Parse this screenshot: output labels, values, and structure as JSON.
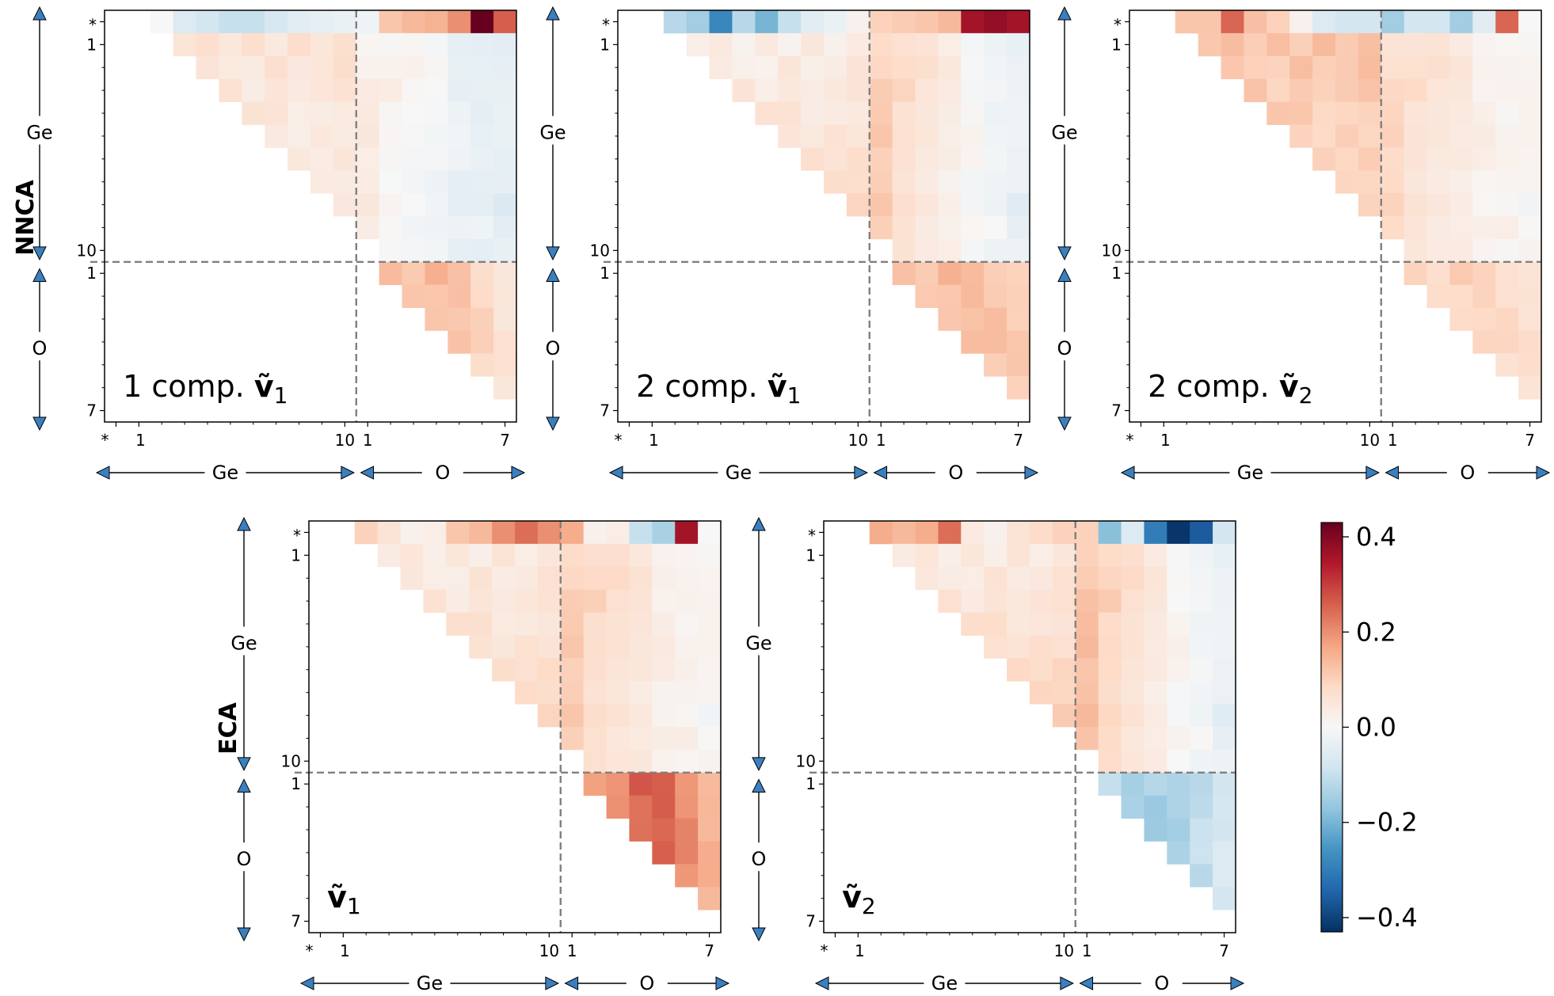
{
  "figure": {
    "row_labels": [
      "NNCA",
      "ECA"
    ],
    "colorbar": {
      "min": -0.43,
      "max": 0.43,
      "ticks": [
        "0.4",
        "0.2",
        "0.0",
        "−0.2",
        "−0.4"
      ],
      "tick_values": [
        0.4,
        0.2,
        0.0,
        -0.2,
        -0.4
      ],
      "colormap": "RdBu_r"
    },
    "axis_groups": {
      "ge": "Ge",
      "o": "O",
      "star": "*"
    },
    "colors": {
      "arrow_fill": "#3a80c0",
      "dashed": "#808080",
      "pos": "#67001f",
      "neg": "#053061"
    }
  },
  "chart_data": [
    {
      "type": "heatmap",
      "panel": "1 comp. ṽ₁",
      "label_main": "1 comp. ",
      "label_vec": "ṽ",
      "label_sub": "1",
      "rows": [
        "*",
        "Ge1",
        "Ge2",
        "Ge3",
        "Ge4",
        "Ge5",
        "Ge6",
        "Ge7",
        "Ge8",
        "Ge9",
        "Ge10",
        "O1",
        "O2",
        "O3",
        "O4",
        "O5",
        "O6",
        "O7"
      ],
      "cols": [
        "*",
        "Ge1",
        "Ge2",
        "Ge3",
        "Ge4",
        "Ge5",
        "Ge6",
        "Ge7",
        "Ge8",
        "Ge9",
        "Ge10",
        "O1",
        "O2",
        "O3",
        "O4",
        "O5",
        "O6",
        "O7"
      ],
      "y_ticks": [
        "*",
        "1",
        "10",
        "1",
        "7"
      ],
      "x_ticks": [
        "*",
        "1",
        "10",
        "1",
        "7"
      ],
      "anchors": {
        "top": [
          0.0,
          -0.06,
          -0.08,
          -0.1,
          -0.1,
          -0.07,
          -0.05,
          -0.04,
          -0.03,
          -0.02,
          0.12,
          0.14,
          0.15,
          0.2,
          0.43,
          0.26
        ],
        "geo": [
          0.06,
          0.03,
          -0.05
        ],
        "o": [
          0.12,
          0.14,
          0.05
        ]
      }
    },
    {
      "type": "heatmap",
      "panel": "2 comp. ṽ₁",
      "label_main": "2 comp. ",
      "label_vec": "ṽ",
      "label_sub": "1",
      "rows": [
        "*",
        "Ge1",
        "Ge2",
        "Ge3",
        "Ge4",
        "Ge5",
        "Ge6",
        "Ge7",
        "Ge8",
        "Ge9",
        "Ge10",
        "O1",
        "O2",
        "O3",
        "O4",
        "O5",
        "O6",
        "O7"
      ],
      "cols": [
        "*",
        "Ge1",
        "Ge2",
        "Ge3",
        "Ge4",
        "Ge5",
        "Ge6",
        "Ge7",
        "Ge8",
        "Ge9",
        "Ge10",
        "O1",
        "O2",
        "O3",
        "O4",
        "O5",
        "O6",
        "O7"
      ],
      "y_ticks": [
        "*",
        "1",
        "10",
        "1",
        "7"
      ],
      "x_ticks": [
        "*",
        "1",
        "10",
        "1",
        "7"
      ],
      "anchors": {
        "top": [
          -0.12,
          -0.15,
          -0.28,
          -0.12,
          -0.2,
          -0.1,
          -0.05,
          -0.03,
          0.02,
          0.1,
          0.11,
          0.12,
          0.14,
          0.36,
          0.38,
          0.36
        ],
        "geo": [
          0.03,
          0.1,
          -0.04
        ],
        "o": [
          0.11,
          0.14,
          0.1
        ]
      }
    },
    {
      "type": "heatmap",
      "panel": "2 comp. ṽ₂",
      "label_main": "2 comp. ",
      "label_vec": "ṽ",
      "label_sub": "2",
      "rows": [
        "*",
        "Ge1",
        "Ge2",
        "Ge3",
        "Ge4",
        "Ge5",
        "Ge6",
        "Ge7",
        "Ge8",
        "Ge9",
        "Ge10",
        "O1",
        "O2",
        "O3",
        "O4",
        "O5",
        "O6",
        "O7"
      ],
      "cols": [
        "*",
        "Ge1",
        "Ge2",
        "Ge3",
        "Ge4",
        "Ge5",
        "Ge6",
        "Ge7",
        "Ge8",
        "Ge9",
        "Ge10",
        "O1",
        "O2",
        "O3",
        "O4",
        "O5",
        "O6",
        "O7"
      ],
      "y_ticks": [
        "*",
        "1",
        "10",
        "1",
        "7"
      ],
      "x_ticks": [
        "*",
        "1",
        "10",
        "1",
        "7"
      ],
      "anchors": {
        "top": [
          0.12,
          0.12,
          0.25,
          0.13,
          0.1,
          0.02,
          -0.06,
          -0.08,
          -0.08,
          -0.15,
          -0.08,
          -0.08,
          -0.15,
          -0.05,
          0.25,
          0.0
        ],
        "geo": [
          0.12,
          0.08,
          0.0
        ],
        "o": [
          0.08,
          0.1,
          0.06
        ]
      }
    },
    {
      "type": "heatmap",
      "panel": "ECA ṽ₁",
      "label_main": "",
      "label_vec": "ṽ",
      "label_sub": "1",
      "rows": [
        "*",
        "Ge1",
        "Ge2",
        "Ge3",
        "Ge4",
        "Ge5",
        "Ge6",
        "Ge7",
        "Ge8",
        "Ge9",
        "Ge10",
        "O1",
        "O2",
        "O3",
        "O4",
        "O5",
        "O6",
        "O7"
      ],
      "cols": [
        "*",
        "Ge1",
        "Ge2",
        "Ge3",
        "Ge4",
        "Ge5",
        "Ge6",
        "Ge7",
        "Ge8",
        "Ge9",
        "Ge10",
        "O1",
        "O2",
        "O3",
        "O4",
        "O5",
        "O6",
        "O7"
      ],
      "y_ticks": [
        "*",
        "1",
        "10",
        "1",
        "7"
      ],
      "x_ticks": [
        "*",
        "1",
        "10",
        "1",
        "7"
      ],
      "anchors": {
        "top": [
          0.1,
          0.06,
          0.02,
          0.03,
          0.12,
          0.14,
          0.2,
          0.24,
          0.2,
          0.16,
          0.02,
          0.03,
          -0.1,
          -0.14,
          0.36,
          0.0
        ],
        "geo": [
          0.04,
          0.1,
          0.0
        ],
        "o": [
          0.12,
          0.28,
          0.14
        ]
      }
    },
    {
      "type": "heatmap",
      "panel": "ECA ṽ₂",
      "label_main": "",
      "label_vec": "ṽ",
      "label_sub": "2",
      "rows": [
        "*",
        "Ge1",
        "Ge2",
        "Ge3",
        "Ge4",
        "Ge5",
        "Ge6",
        "Ge7",
        "Ge8",
        "Ge9",
        "Ge10",
        "O1",
        "O2",
        "O3",
        "O4",
        "O5",
        "O6",
        "O7"
      ],
      "cols": [
        "*",
        "Ge1",
        "Ge2",
        "Ge3",
        "Ge4",
        "Ge5",
        "Ge6",
        "Ge7",
        "Ge8",
        "Ge9",
        "Ge10",
        "O1",
        "O2",
        "O3",
        "O4",
        "O5",
        "O6",
        "O7"
      ],
      "y_ticks": [
        "*",
        "1",
        "10",
        "1",
        "7"
      ],
      "x_ticks": [
        "*",
        "1",
        "10",
        "1",
        "7"
      ],
      "anchors": {
        "top": [
          0.16,
          0.14,
          0.16,
          0.24,
          0.04,
          0.02,
          0.06,
          0.08,
          0.1,
          0.1,
          -0.18,
          -0.06,
          -0.3,
          -0.42,
          -0.36,
          -0.08
        ],
        "geo": [
          0.04,
          0.12,
          -0.04
        ],
        "o": [
          -0.1,
          -0.15,
          -0.08
        ]
      }
    }
  ]
}
